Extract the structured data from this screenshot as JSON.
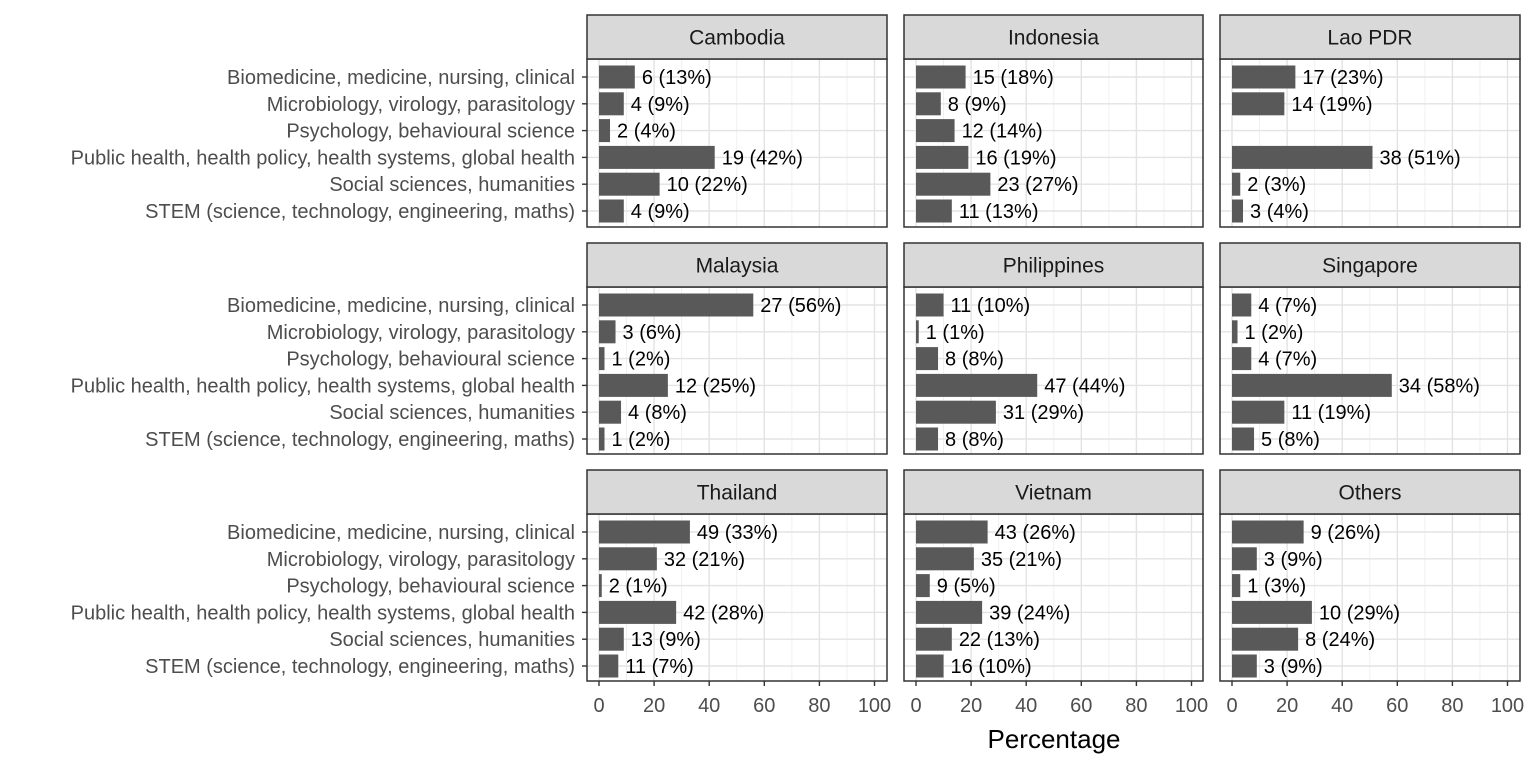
{
  "chart_data": {
    "type": "bar",
    "orientation": "horizontal",
    "facet_layout": "3x3 grid",
    "xlabel": "Percentage",
    "ylabel": "",
    "xlim": [
      0,
      100
    ],
    "x_ticks": [
      0,
      20,
      40,
      60,
      80,
      100
    ],
    "grid": true,
    "bar_color": "#595959",
    "strip_color": "#d9d9d9",
    "categories": [
      "Biomedicine, medicine, nursing, clinical",
      "Microbiology, virology, parasitology",
      "Psychology, behavioural science",
      "Public health, health policy, health systems, global health",
      "Social sciences, humanities",
      "STEM (science, technology, engineering, maths)"
    ],
    "panels": [
      {
        "name": "Cambodia",
        "values": [
          13,
          9,
          4,
          42,
          22,
          9
        ],
        "labels": [
          "6 (13%)",
          "4 (9%)",
          "2 (4%)",
          "19 (42%)",
          "10 (22%)",
          "4 (9%)"
        ]
      },
      {
        "name": "Indonesia",
        "values": [
          18,
          9,
          14,
          19,
          27,
          13
        ],
        "labels": [
          "15 (18%)",
          "8 (9%)",
          "12 (14%)",
          "16 (19%)",
          "23 (27%)",
          "11 (13%)"
        ]
      },
      {
        "name": "Lao PDR",
        "values": [
          23,
          19,
          null,
          51,
          3,
          4
        ],
        "labels": [
          "17 (23%)",
          "14 (19%)",
          "",
          "38 (51%)",
          "2 (3%)",
          "3 (4%)"
        ]
      },
      {
        "name": "Malaysia",
        "values": [
          56,
          6,
          2,
          25,
          8,
          2
        ],
        "labels": [
          "27 (56%)",
          "3 (6%)",
          "1 (2%)",
          "12 (25%)",
          "4 (8%)",
          "1 (2%)"
        ]
      },
      {
        "name": "Philippines",
        "values": [
          10,
          1,
          8,
          44,
          29,
          8
        ],
        "labels": [
          "11 (10%)",
          "1 (1%)",
          "8 (8%)",
          "47 (44%)",
          "31 (29%)",
          "8 (8%)"
        ]
      },
      {
        "name": "Singapore",
        "values": [
          7,
          2,
          7,
          58,
          19,
          8
        ],
        "labels": [
          "4 (7%)",
          "1 (2%)",
          "4 (7%)",
          "34 (58%)",
          "11 (19%)",
          "5 (8%)"
        ]
      },
      {
        "name": "Thailand",
        "values": [
          33,
          21,
          1,
          28,
          9,
          7
        ],
        "labels": [
          "49 (33%)",
          "32 (21%)",
          "2 (1%)",
          "42 (28%)",
          "13 (9%)",
          "11 (7%)"
        ]
      },
      {
        "name": "Vietnam",
        "values": [
          26,
          21,
          5,
          24,
          13,
          10
        ],
        "labels": [
          "43 (26%)",
          "35 (21%)",
          "9 (5%)",
          "39 (24%)",
          "22 (13%)",
          "16 (10%)"
        ]
      },
      {
        "name": "Others",
        "values": [
          26,
          9,
          3,
          29,
          24,
          9
        ],
        "labels": [
          "9 (26%)",
          "3 (9%)",
          "1 (3%)",
          "10 (29%)",
          "8 (24%)",
          "3 (9%)"
        ]
      }
    ]
  }
}
